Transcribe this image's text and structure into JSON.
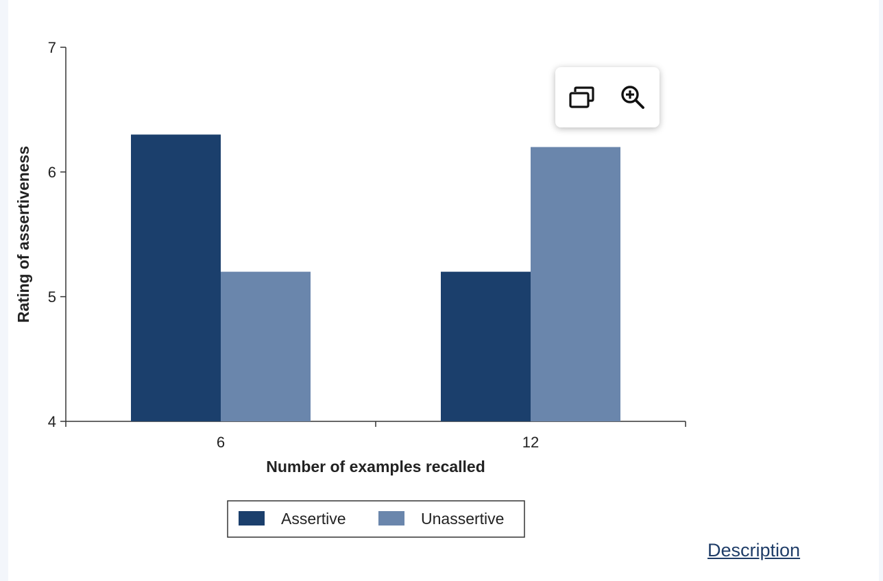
{
  "chart_data": {
    "type": "bar",
    "categories": [
      "6",
      "12"
    ],
    "series": [
      {
        "name": "Assertive",
        "values": [
          6.3,
          5.2
        ],
        "color": "#1b3f6c"
      },
      {
        "name": "Unassertive",
        "values": [
          5.2,
          6.2
        ],
        "color": "#6a86ac"
      }
    ],
    "xlabel": "Number of examples recalled",
    "ylabel": "Rating of assertiveness",
    "ylim": [
      4,
      7
    ],
    "yticks": [
      "4",
      "5",
      "6",
      "7"
    ],
    "grid": false,
    "legend_position": "bottom-center"
  },
  "toolbar": {
    "icons": [
      "gallery-icon",
      "zoom-in-icon"
    ]
  },
  "links": {
    "description": "Description"
  }
}
